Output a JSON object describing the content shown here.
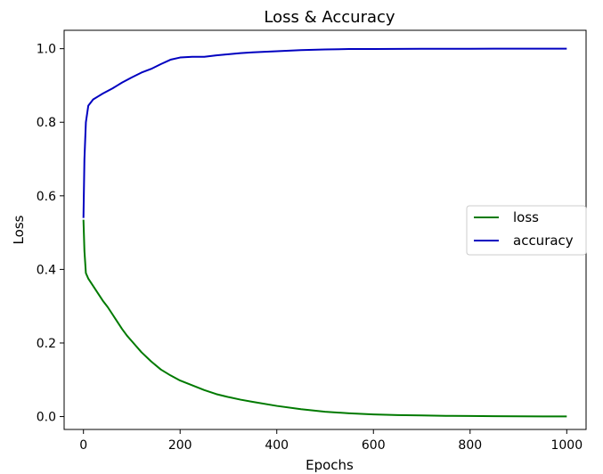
{
  "chart_data": {
    "type": "line",
    "title": "Loss & Accuracy",
    "xlabel": "Epochs",
    "ylabel": "Loss",
    "xlim": [
      -40,
      1040
    ],
    "ylim": [
      -0.035,
      1.05
    ],
    "x_ticks": [
      0,
      200,
      400,
      600,
      800,
      1000
    ],
    "x_tick_labels": [
      "0",
      "200",
      "400",
      "600",
      "800",
      "1000"
    ],
    "y_ticks": [
      0.0,
      0.2,
      0.4,
      0.6,
      0.8,
      1.0
    ],
    "y_tick_labels": [
      "0.0",
      "0.2",
      "0.4",
      "0.6",
      "0.8",
      "1.0"
    ],
    "grid": false,
    "legend_position": "center-right",
    "series": [
      {
        "name": "loss",
        "color": "#007a00",
        "x": [
          0,
          2,
          5,
          10,
          20,
          30,
          40,
          50,
          60,
          70,
          80,
          90,
          100,
          120,
          140,
          160,
          180,
          200,
          225,
          250,
          275,
          300,
          325,
          350,
          400,
          450,
          500,
          550,
          600,
          650,
          700,
          750,
          800,
          850,
          900,
          950,
          1000
        ],
        "y": [
          0.535,
          0.45,
          0.39,
          0.375,
          0.355,
          0.335,
          0.315,
          0.298,
          0.278,
          0.258,
          0.238,
          0.22,
          0.205,
          0.175,
          0.15,
          0.128,
          0.112,
          0.098,
          0.085,
          0.072,
          0.061,
          0.053,
          0.046,
          0.04,
          0.029,
          0.02,
          0.013,
          0.009,
          0.006,
          0.004,
          0.003,
          0.002,
          0.0015,
          0.001,
          0.0008,
          0.0005,
          0.0004
        ]
      },
      {
        "name": "accuracy",
        "color": "#0000c0",
        "x": [
          0,
          2,
          5,
          10,
          20,
          30,
          40,
          50,
          60,
          70,
          80,
          90,
          100,
          120,
          140,
          160,
          180,
          200,
          225,
          250,
          275,
          300,
          325,
          350,
          400,
          450,
          500,
          550,
          600,
          650,
          700,
          750,
          800,
          850,
          900,
          950,
          1000
        ],
        "y": [
          0.54,
          0.7,
          0.8,
          0.845,
          0.862,
          0.87,
          0.878,
          0.885,
          0.892,
          0.9,
          0.908,
          0.915,
          0.922,
          0.935,
          0.945,
          0.958,
          0.97,
          0.976,
          0.978,
          0.978,
          0.982,
          0.985,
          0.988,
          0.99,
          0.993,
          0.996,
          0.998,
          0.999,
          0.999,
          0.9995,
          0.9997,
          0.9998,
          0.9999,
          1.0,
          1.0,
          1.0,
          1.0
        ]
      }
    ]
  }
}
